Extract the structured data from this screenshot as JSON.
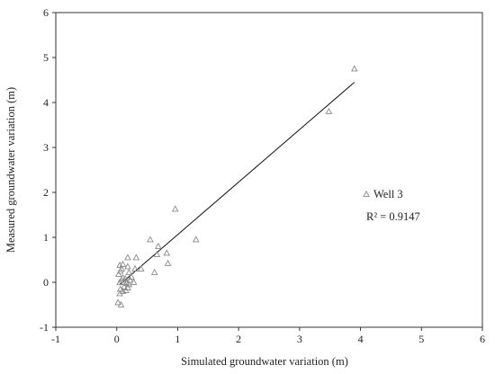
{
  "chart_data": {
    "type": "scatter",
    "title": "",
    "xlabel": "Simulated groundwater variation (m)",
    "ylabel": "Measured groundwater variation (m)",
    "xlim": [
      -1,
      6
    ],
    "ylim": [
      -1,
      6
    ],
    "xticks": [
      -1,
      0,
      1,
      2,
      3,
      4,
      5,
      6
    ],
    "yticks": [
      -1,
      0,
      1,
      2,
      3,
      4,
      5,
      6
    ],
    "grid": false,
    "legend_position": "right",
    "series": [
      {
        "name": "Well 3",
        "marker": "triangle",
        "color": "#888888",
        "points": [
          [
            0.02,
            -0.45
          ],
          [
            0.07,
            -0.5
          ],
          [
            0.05,
            -0.25
          ],
          [
            0.06,
            -0.15
          ],
          [
            0.1,
            -0.2
          ],
          [
            0.12,
            -0.1
          ],
          [
            0.15,
            -0.18
          ],
          [
            0.18,
            -0.12
          ],
          [
            0.2,
            -0.05
          ],
          [
            0.05,
            0.0
          ],
          [
            0.08,
            0.05
          ],
          [
            0.1,
            0.1
          ],
          [
            0.12,
            0.0
          ],
          [
            0.14,
            0.08
          ],
          [
            0.16,
            -0.02
          ],
          [
            0.03,
            0.18
          ],
          [
            0.06,
            0.25
          ],
          [
            0.08,
            0.3
          ],
          [
            0.05,
            0.38
          ],
          [
            0.1,
            0.4
          ],
          [
            0.18,
            0.35
          ],
          [
            0.2,
            0.22
          ],
          [
            0.22,
            0.05
          ],
          [
            0.24,
            0.12
          ],
          [
            0.18,
            0.55
          ],
          [
            0.3,
            0.3
          ],
          [
            0.32,
            0.55
          ],
          [
            0.4,
            0.3
          ],
          [
            0.28,
            0.0
          ],
          [
            0.55,
            0.95
          ],
          [
            0.62,
            0.22
          ],
          [
            0.66,
            0.62
          ],
          [
            0.68,
            0.8
          ],
          [
            0.82,
            0.65
          ],
          [
            0.84,
            0.42
          ],
          [
            0.96,
            1.63
          ],
          [
            1.3,
            0.95
          ],
          [
            3.48,
            3.8
          ],
          [
            3.9,
            4.75
          ]
        ]
      }
    ],
    "trendline": {
      "x": [
        0.05,
        3.9
      ],
      "y": [
        -0.05,
        4.45
      ]
    },
    "annotation": "R² = 0.9147"
  }
}
